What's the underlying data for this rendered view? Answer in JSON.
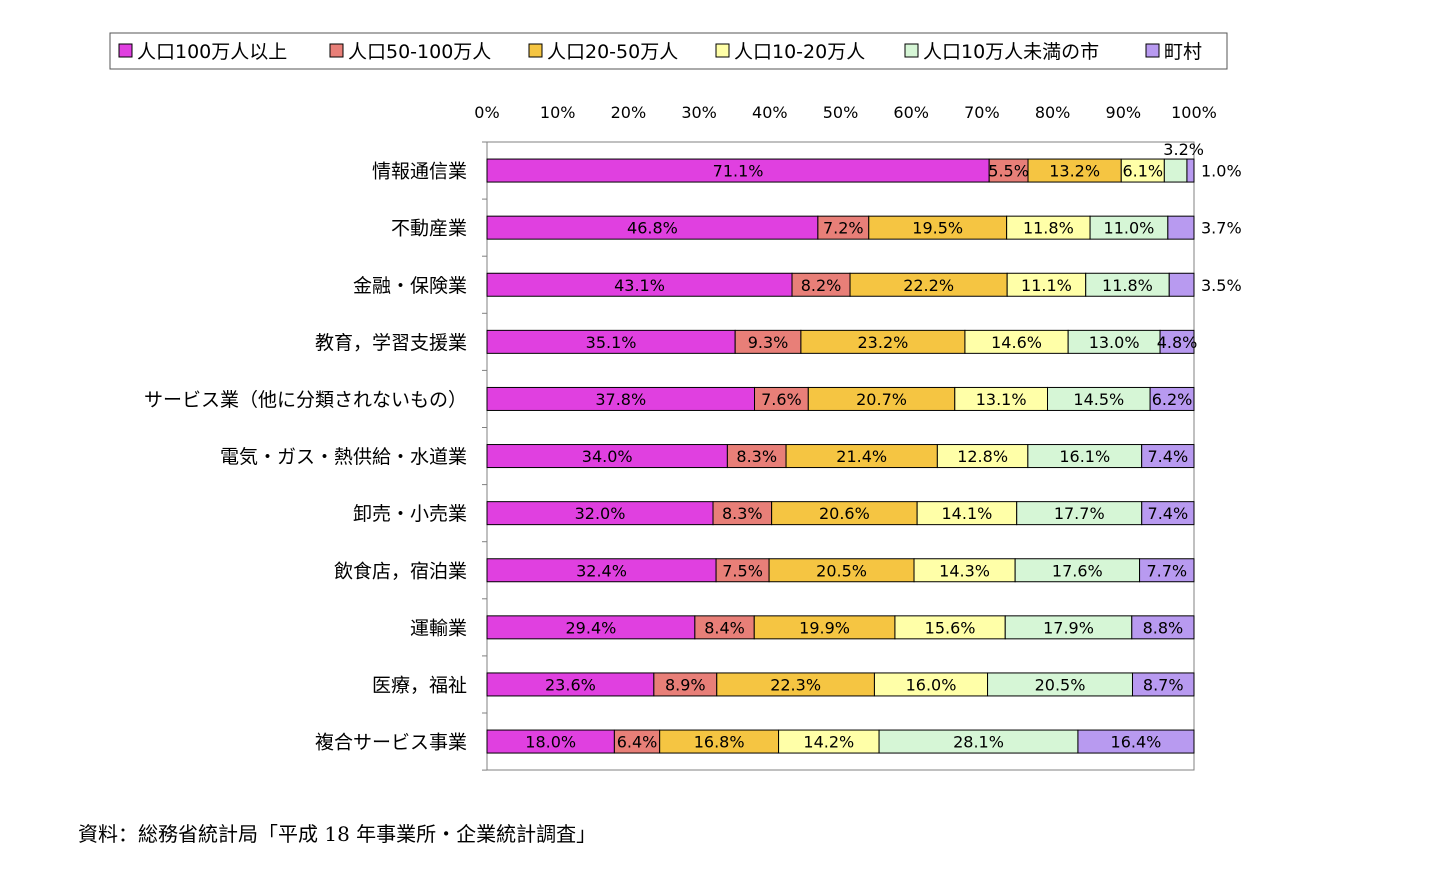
{
  "chart_data": {
    "type": "bar",
    "orientation": "horizontal",
    "stacked": "percent",
    "xlim": [
      0,
      100
    ],
    "x_ticks": [
      "0%",
      "10%",
      "20%",
      "30%",
      "40%",
      "50%",
      "60%",
      "70%",
      "80%",
      "90%",
      "100%"
    ],
    "legend_placement": "top",
    "categories": [
      "情報通信業",
      "不動産業",
      "金融・保険業",
      "教育，学習支援業",
      "サービス業（他に分類されないもの）",
      "電気・ガス・熱供給・水道業",
      "卸売・小売業",
      "飲食店，宿泊業",
      "運輸業",
      "医療，福祉",
      "複合サービス事業"
    ],
    "series": [
      {
        "name": "人口100万人以上",
        "color": "#e040e0",
        "values": [
          71.1,
          46.8,
          43.1,
          35.1,
          37.8,
          34.0,
          32.0,
          32.4,
          29.4,
          23.6,
          18.0
        ],
        "labels": [
          "71.1%",
          "46.8%",
          "43.1%",
          "35.1%",
          "37.8%",
          "34.0%",
          "32.0%",
          "32.4%",
          "29.4%",
          "23.6%",
          "18.0%"
        ]
      },
      {
        "name": "人口50-100万人",
        "color": "#e87f78",
        "values": [
          5.5,
          7.2,
          8.2,
          9.3,
          7.6,
          8.3,
          8.3,
          7.5,
          8.4,
          8.9,
          6.4
        ],
        "labels": [
          "5.5%",
          "7.2%",
          "8.2%",
          "9.3%",
          "7.6%",
          "8.3%",
          "8.3%",
          "7.5%",
          "8.4%",
          "8.9%",
          "6.4%"
        ]
      },
      {
        "name": "人口20-50万人",
        "color": "#f5c542",
        "values": [
          13.2,
          19.5,
          22.2,
          23.2,
          20.7,
          21.4,
          20.6,
          20.5,
          19.9,
          22.3,
          16.8
        ],
        "labels": [
          "13.2%",
          "19.5%",
          "22.2%",
          "23.2%",
          "20.7%",
          "21.4%",
          "20.6%",
          "20.5%",
          "19.9%",
          "22.3%",
          "16.8%"
        ]
      },
      {
        "name": "人口10-20万人",
        "color": "#ffffa8",
        "values": [
          6.1,
          11.8,
          11.1,
          14.6,
          13.1,
          12.8,
          14.1,
          14.3,
          15.6,
          16.0,
          14.2
        ],
        "labels": [
          "6.1%",
          "11.8%",
          "11.1%",
          "14.6%",
          "13.1%",
          "12.8%",
          "14.1%",
          "14.3%",
          "15.6%",
          "16.0%",
          "14.2%"
        ]
      },
      {
        "name": "人口10万人未満の市",
        "color": "#d6f6d6",
        "values": [
          3.2,
          11.0,
          11.8,
          13.0,
          14.5,
          16.1,
          17.7,
          17.6,
          17.9,
          20.5,
          28.1
        ],
        "labels": [
          "3.2%",
          "11.0%",
          "11.8%",
          "13.0%",
          "14.5%",
          "16.1%",
          "17.7%",
          "17.6%",
          "17.9%",
          "20.5%",
          "28.1%"
        ]
      },
      {
        "name": "町村",
        "color": "#b89af0",
        "values": [
          1.0,
          3.7,
          3.5,
          4.8,
          6.2,
          7.4,
          7.4,
          7.7,
          8.8,
          8.7,
          16.4
        ],
        "labels": [
          "1.0%",
          "3.7%",
          "3.5%",
          "4.8%",
          "6.2%",
          "7.4%",
          "7.4%",
          "7.7%",
          "8.8%",
          "8.7%",
          "16.4%"
        ]
      }
    ]
  },
  "source_note": "資料：総務省統計局「平成 18 年事業所・企業統計調査」"
}
